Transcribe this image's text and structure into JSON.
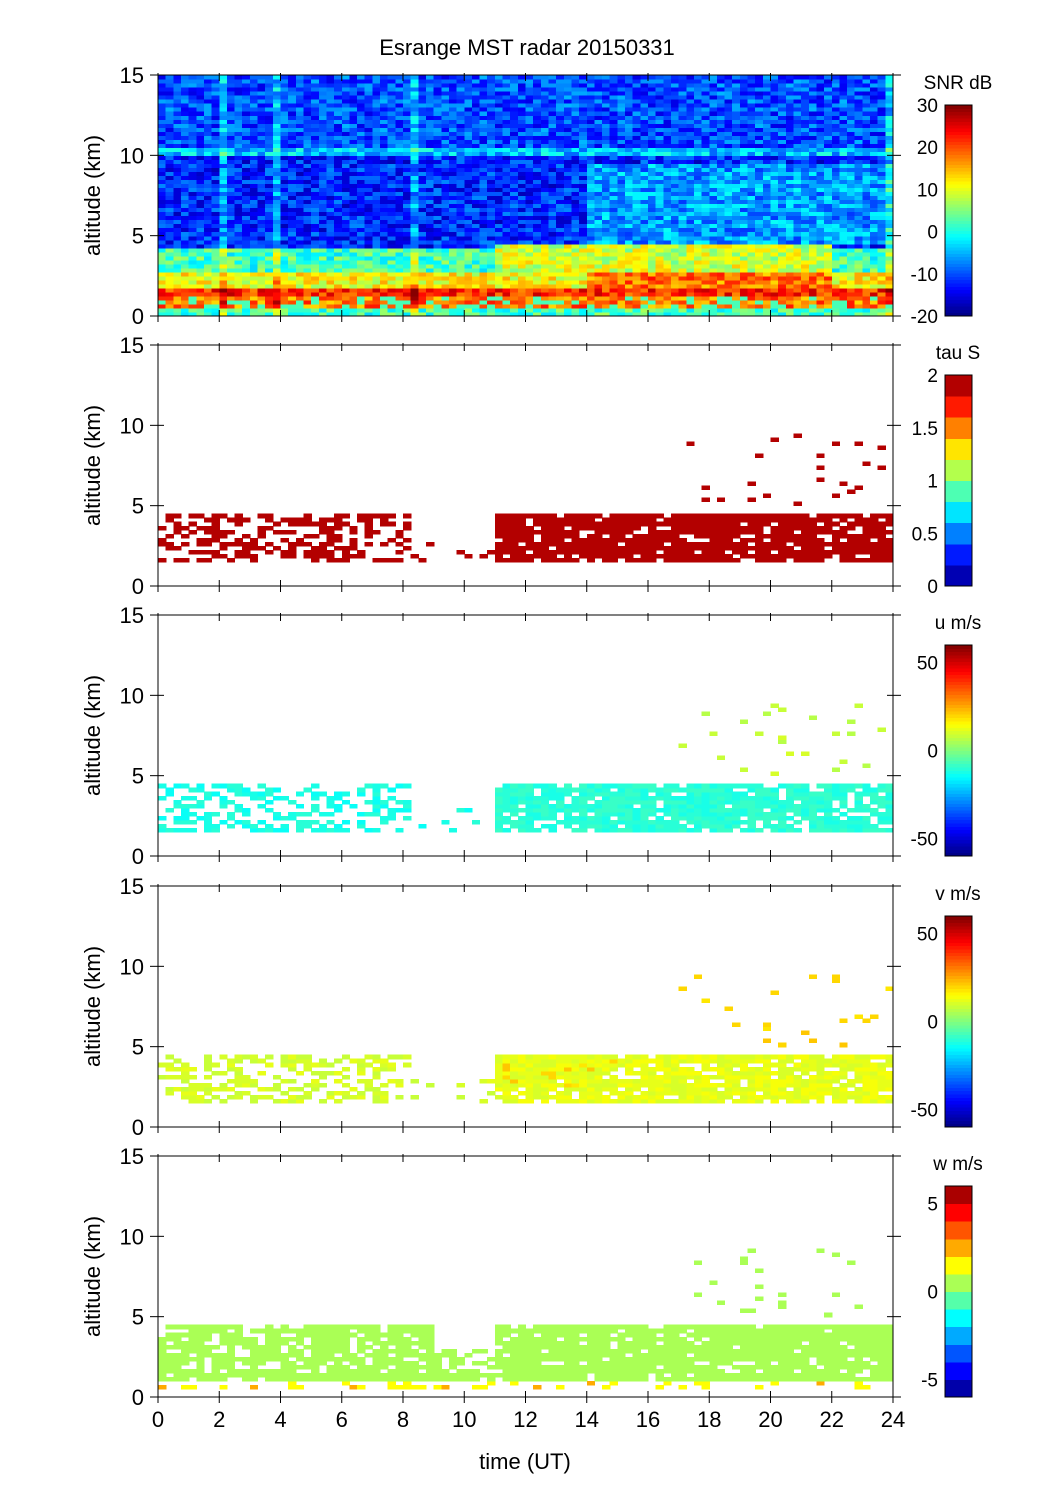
{
  "chart_data": {
    "type": "heatmap",
    "title": "Esrange MST radar 20150331",
    "xlabel": "time (UT)",
    "xlim": [
      0,
      24
    ],
    "xticks": [
      0,
      2,
      4,
      6,
      8,
      10,
      12,
      14,
      16,
      18,
      20,
      22,
      24
    ],
    "panels": [
      {
        "name": "snr",
        "colorbar_label": "SNR dB",
        "clim": [
          -20,
          30
        ],
        "cticks": [
          "-20",
          "-10",
          "0",
          "10",
          "20",
          "30"
        ],
        "cticks_values": [
          -20,
          -10,
          0,
          10,
          20,
          30
        ],
        "levels": 64,
        "ylabel": "altitude (km)",
        "ylim": [
          0,
          15
        ],
        "yticks": [
          0,
          5,
          10,
          15
        ],
        "background_profile": [
          {
            "z": [
              0,
              0.3
            ],
            "value": 2
          },
          {
            "z": [
              0.3,
              1.2
            ],
            "value": 18
          },
          {
            "z": [
              1.2,
              1.6
            ],
            "value": 22
          },
          {
            "z": [
              1.6,
              2.6
            ],
            "value": 11
          },
          {
            "z": [
              2.6,
              4.2
            ],
            "value": 2
          },
          {
            "z": [
              4.2,
              9.9
            ],
            "value": -12
          },
          {
            "z": [
              9.9,
              10.5
            ],
            "value": -4
          },
          {
            "z": [
              10.5,
              15
            ],
            "value": -10
          }
        ],
        "features": [
          {
            "t": [
              11,
              22
            ],
            "z": [
              2.6,
              4.5
            ],
            "value": 9
          },
          {
            "t": [
              14,
              22
            ],
            "z": [
              1.6,
              2.6
            ],
            "value": 18
          },
          {
            "t": [
              14,
              24
            ],
            "z": [
              4.5,
              9.5
            ],
            "value": -6
          }
        ]
      },
      {
        "name": "tau",
        "colorbar_label": "tau S",
        "clim": [
          0,
          2
        ],
        "cticks": [
          "0",
          "0.5",
          "1",
          "1.5",
          "2"
        ],
        "cticks_values": [
          0,
          0.5,
          1,
          1.5,
          2
        ],
        "levels": 10,
        "ylabel": "altitude (km)",
        "ylim": [
          0,
          15
        ],
        "yticks": [
          0,
          5,
          10,
          15
        ],
        "echo_regions": [
          {
            "t": [
              0,
              8.2
            ],
            "z": [
              1.5,
              4.3
            ],
            "coverage": 0.45,
            "value": 1.95
          },
          {
            "t": [
              8.2,
              10.8
            ],
            "z": [
              1.5,
              3.0
            ],
            "coverage": 0.08,
            "value": 1.95
          },
          {
            "t": [
              10.8,
              24
            ],
            "z": [
              1.5,
              4.4
            ],
            "coverage": 0.85,
            "value": 1.95
          },
          {
            "t": [
              17,
              24
            ],
            "z": [
              5,
              9.5
            ],
            "coverage": 0.04,
            "value": 1.95
          }
        ]
      },
      {
        "name": "u",
        "colorbar_label": "u m/s",
        "clim": [
          -60,
          60
        ],
        "cticks": [
          "-50",
          "0",
          "50"
        ],
        "cticks_values": [
          -50,
          0,
          50
        ],
        "levels": 64,
        "ylabel": "altitude (km)",
        "ylim": [
          0,
          15
        ],
        "yticks": [
          0,
          5,
          10,
          15
        ],
        "echo_regions": [
          {
            "t": [
              0,
              8.2
            ],
            "z": [
              1.5,
              4.3
            ],
            "coverage": 0.45,
            "value": -12
          },
          {
            "t": [
              8.2,
              10.8
            ],
            "z": [
              1.5,
              3.0
            ],
            "coverage": 0.08,
            "value": -12
          },
          {
            "t": [
              10.8,
              24
            ],
            "z": [
              1.5,
              4.4
            ],
            "coverage": 0.85,
            "value": -10
          },
          {
            "t": [
              17,
              24
            ],
            "z": [
              5,
              9.5
            ],
            "coverage": 0.04,
            "value": 8
          }
        ]
      },
      {
        "name": "v",
        "colorbar_label": "v m/s",
        "clim": [
          -60,
          60
        ],
        "cticks": [
          "-50",
          "0",
          "50"
        ],
        "cticks_values": [
          -50,
          0,
          50
        ],
        "levels": 64,
        "ylabel": "altitude (km)",
        "ylim": [
          0,
          15
        ],
        "yticks": [
          0,
          5,
          10,
          15
        ],
        "echo_regions": [
          {
            "t": [
              0,
              8.2
            ],
            "z": [
              1.5,
              4.3
            ],
            "coverage": 0.45,
            "value": 10
          },
          {
            "t": [
              8.2,
              10.8
            ],
            "z": [
              1.5,
              3.0
            ],
            "coverage": 0.08,
            "value": 10
          },
          {
            "t": [
              10.8,
              15
            ],
            "z": [
              2.5,
              4.4
            ],
            "coverage": 0.85,
            "value": 20
          },
          {
            "t": [
              10.8,
              24
            ],
            "z": [
              1.5,
              4.4
            ],
            "coverage": 0.85,
            "value": 12
          },
          {
            "t": [
              17,
              24
            ],
            "z": [
              5,
              9.5
            ],
            "coverage": 0.04,
            "value": 20
          }
        ]
      },
      {
        "name": "w",
        "colorbar_label": "w m/s",
        "clim": [
          -6,
          6
        ],
        "cticks": [
          "-5",
          "0",
          "5"
        ],
        "cticks_values": [
          -5,
          0,
          5
        ],
        "levels": 12,
        "ylabel": "altitude (km)",
        "ylim": [
          0,
          15
        ],
        "yticks": [
          0,
          5,
          10,
          15
        ],
        "echo_regions": [
          {
            "t": [
              0,
              24
            ],
            "z": [
              0.9,
              1.3
            ],
            "coverage": 0.95,
            "value": 0.5
          },
          {
            "t": [
              0,
              9
            ],
            "z": [
              1.3,
              4.5
            ],
            "coverage": 0.75,
            "value": 0.5
          },
          {
            "t": [
              9,
              11
            ],
            "z": [
              1.3,
              3.0
            ],
            "coverage": 0.6,
            "value": 0.5
          },
          {
            "t": [
              11,
              24
            ],
            "z": [
              1.3,
              4.5
            ],
            "coverage": 0.9,
            "value": 0.5
          },
          {
            "t": [
              0,
              24
            ],
            "z": [
              0.3,
              0.8
            ],
            "coverage": 0.2,
            "value": 1.8
          },
          {
            "t": [
              17,
              24
            ],
            "z": [
              5,
              9.5
            ],
            "coverage": 0.05,
            "value": 0.5
          }
        ]
      }
    ]
  }
}
